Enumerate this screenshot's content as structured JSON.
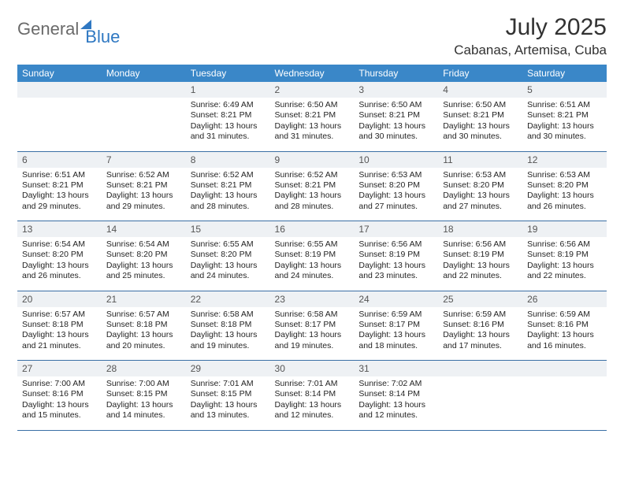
{
  "brand": {
    "part1": "General",
    "part2": "Blue"
  },
  "title": {
    "month": "July 2025",
    "location": "Cabanas, Artemisa, Cuba"
  },
  "colors": {
    "header_bg": "#3a87c8",
    "header_text": "#ffffff",
    "daynum_bg": "#eef1f4",
    "daynum_text": "#555555",
    "row_border": "#3a6fa5",
    "body_text": "#242424",
    "logo_gray": "#6a6a6a",
    "logo_blue": "#2f78c2"
  },
  "weekdays": [
    "Sunday",
    "Monday",
    "Tuesday",
    "Wednesday",
    "Thursday",
    "Friday",
    "Saturday"
  ],
  "weeks": [
    [
      null,
      null,
      {
        "n": "1",
        "sr": "6:49 AM",
        "ss": "8:21 PM",
        "dl": "13 hours and 31 minutes."
      },
      {
        "n": "2",
        "sr": "6:50 AM",
        "ss": "8:21 PM",
        "dl": "13 hours and 31 minutes."
      },
      {
        "n": "3",
        "sr": "6:50 AM",
        "ss": "8:21 PM",
        "dl": "13 hours and 30 minutes."
      },
      {
        "n": "4",
        "sr": "6:50 AM",
        "ss": "8:21 PM",
        "dl": "13 hours and 30 minutes."
      },
      {
        "n": "5",
        "sr": "6:51 AM",
        "ss": "8:21 PM",
        "dl": "13 hours and 30 minutes."
      }
    ],
    [
      {
        "n": "6",
        "sr": "6:51 AM",
        "ss": "8:21 PM",
        "dl": "13 hours and 29 minutes."
      },
      {
        "n": "7",
        "sr": "6:52 AM",
        "ss": "8:21 PM",
        "dl": "13 hours and 29 minutes."
      },
      {
        "n": "8",
        "sr": "6:52 AM",
        "ss": "8:21 PM",
        "dl": "13 hours and 28 minutes."
      },
      {
        "n": "9",
        "sr": "6:52 AM",
        "ss": "8:21 PM",
        "dl": "13 hours and 28 minutes."
      },
      {
        "n": "10",
        "sr": "6:53 AM",
        "ss": "8:20 PM",
        "dl": "13 hours and 27 minutes."
      },
      {
        "n": "11",
        "sr": "6:53 AM",
        "ss": "8:20 PM",
        "dl": "13 hours and 27 minutes."
      },
      {
        "n": "12",
        "sr": "6:53 AM",
        "ss": "8:20 PM",
        "dl": "13 hours and 26 minutes."
      }
    ],
    [
      {
        "n": "13",
        "sr": "6:54 AM",
        "ss": "8:20 PM",
        "dl": "13 hours and 26 minutes."
      },
      {
        "n": "14",
        "sr": "6:54 AM",
        "ss": "8:20 PM",
        "dl": "13 hours and 25 minutes."
      },
      {
        "n": "15",
        "sr": "6:55 AM",
        "ss": "8:20 PM",
        "dl": "13 hours and 24 minutes."
      },
      {
        "n": "16",
        "sr": "6:55 AM",
        "ss": "8:19 PM",
        "dl": "13 hours and 24 minutes."
      },
      {
        "n": "17",
        "sr": "6:56 AM",
        "ss": "8:19 PM",
        "dl": "13 hours and 23 minutes."
      },
      {
        "n": "18",
        "sr": "6:56 AM",
        "ss": "8:19 PM",
        "dl": "13 hours and 22 minutes."
      },
      {
        "n": "19",
        "sr": "6:56 AM",
        "ss": "8:19 PM",
        "dl": "13 hours and 22 minutes."
      }
    ],
    [
      {
        "n": "20",
        "sr": "6:57 AM",
        "ss": "8:18 PM",
        "dl": "13 hours and 21 minutes."
      },
      {
        "n": "21",
        "sr": "6:57 AM",
        "ss": "8:18 PM",
        "dl": "13 hours and 20 minutes."
      },
      {
        "n": "22",
        "sr": "6:58 AM",
        "ss": "8:18 PM",
        "dl": "13 hours and 19 minutes."
      },
      {
        "n": "23",
        "sr": "6:58 AM",
        "ss": "8:17 PM",
        "dl": "13 hours and 19 minutes."
      },
      {
        "n": "24",
        "sr": "6:59 AM",
        "ss": "8:17 PM",
        "dl": "13 hours and 18 minutes."
      },
      {
        "n": "25",
        "sr": "6:59 AM",
        "ss": "8:16 PM",
        "dl": "13 hours and 17 minutes."
      },
      {
        "n": "26",
        "sr": "6:59 AM",
        "ss": "8:16 PM",
        "dl": "13 hours and 16 minutes."
      }
    ],
    [
      {
        "n": "27",
        "sr": "7:00 AM",
        "ss": "8:16 PM",
        "dl": "13 hours and 15 minutes."
      },
      {
        "n": "28",
        "sr": "7:00 AM",
        "ss": "8:15 PM",
        "dl": "13 hours and 14 minutes."
      },
      {
        "n": "29",
        "sr": "7:01 AM",
        "ss": "8:15 PM",
        "dl": "13 hours and 13 minutes."
      },
      {
        "n": "30",
        "sr": "7:01 AM",
        "ss": "8:14 PM",
        "dl": "13 hours and 12 minutes."
      },
      {
        "n": "31",
        "sr": "7:02 AM",
        "ss": "8:14 PM",
        "dl": "13 hours and 12 minutes."
      },
      null,
      null
    ]
  ],
  "labels": {
    "sunrise": "Sunrise: ",
    "sunset": "Sunset: ",
    "daylight": "Daylight: "
  }
}
